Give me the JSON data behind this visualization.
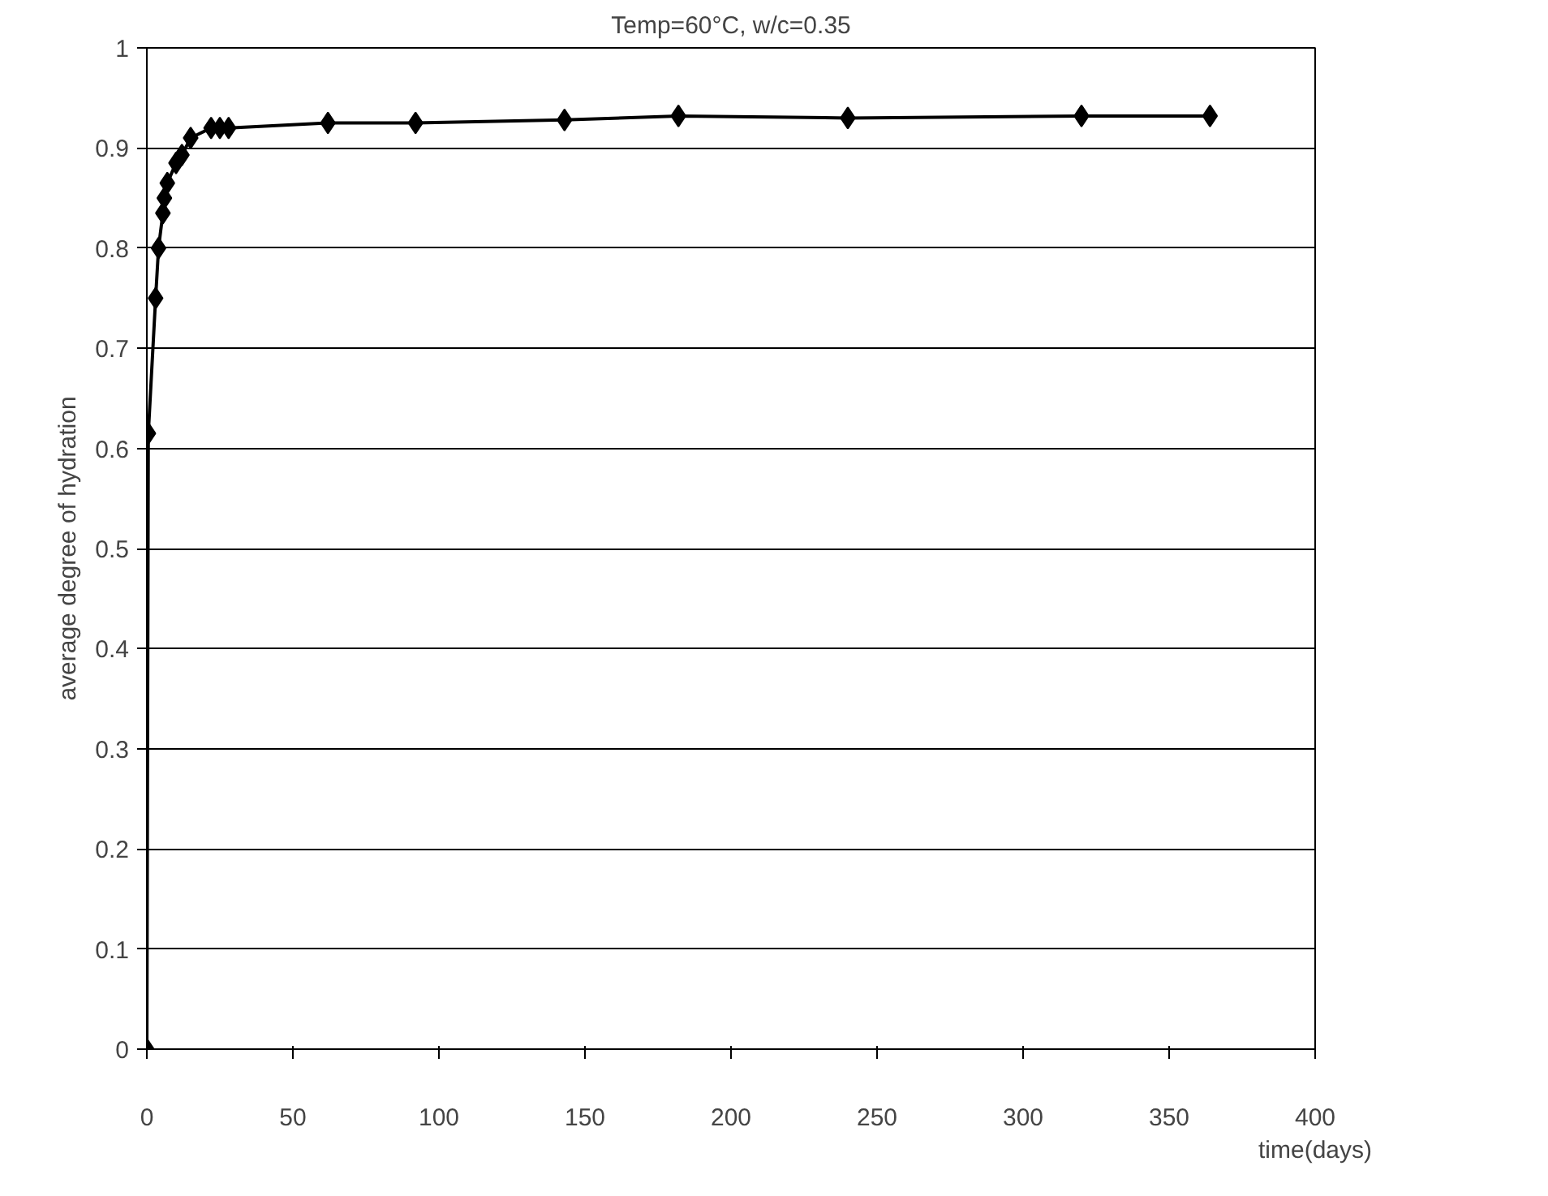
{
  "chart_data": {
    "type": "line",
    "title": "Temp=60°C, w/c=0.35",
    "xlabel": "time(days)",
    "ylabel": "average degree of hydration",
    "x": [
      0,
      0.5,
      3,
      4,
      5.5,
      6,
      7,
      10,
      12,
      15,
      22,
      25,
      28,
      62,
      92,
      143,
      182,
      240,
      320,
      364
    ],
    "series": [
      {
        "color": "#000000",
        "values": [
          0,
          0.615,
          0.75,
          0.8,
          0.835,
          0.85,
          0.865,
          0.885,
          0.893,
          0.91,
          0.92,
          0.92,
          0.92,
          0.925,
          0.925,
          0.928,
          0.932,
          0.93,
          0.932,
          0.932
        ]
      }
    ],
    "xlim": [
      0,
      400
    ],
    "ylim": [
      0,
      1
    ],
    "xticks": [
      0,
      50,
      100,
      150,
      200,
      250,
      300,
      350,
      400
    ],
    "yticks": [
      0,
      0.1,
      0.2,
      0.3,
      0.4,
      0.5,
      0.6,
      0.7,
      0.8,
      0.9,
      1
    ],
    "grid": "y",
    "marker": "diamond",
    "line_style": "solid"
  }
}
